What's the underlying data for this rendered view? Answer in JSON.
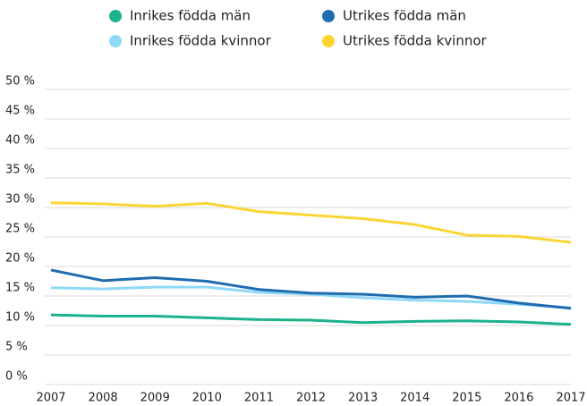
{
  "chart_data": {
    "type": "line",
    "x": [
      "2007",
      "2008",
      "2009",
      "2010",
      "2011",
      "2012",
      "2013",
      "2014",
      "2015",
      "2016",
      "2017"
    ],
    "series": [
      {
        "name": "Inrikes födda män",
        "color": "#1cb28b",
        "values": [
          11.8,
          11.6,
          11.6,
          11.3,
          11.0,
          10.9,
          10.5,
          10.7,
          10.8,
          10.6,
          10.2
        ]
      },
      {
        "name": "Inrikes födda kvinnor",
        "color": "#8fd8f7",
        "values": [
          16.4,
          16.2,
          16.5,
          16.5,
          15.6,
          15.3,
          14.7,
          14.3,
          14.1,
          13.6,
          13.0
        ]
      },
      {
        "name": "Utrikes födda män",
        "color": "#1f6cb0",
        "values": [
          19.4,
          17.6,
          18.1,
          17.5,
          16.1,
          15.5,
          15.3,
          14.8,
          15.0,
          13.8,
          12.9
        ]
      },
      {
        "name": "Utrikes födda kvinnor",
        "color": "#fcd535",
        "values": [
          30.8,
          30.6,
          30.2,
          30.7,
          29.3,
          28.7,
          28.1,
          27.1,
          25.3,
          25.1,
          24.1
        ]
      }
    ],
    "ylim": [
      0,
      50
    ],
    "yticks": [
      {
        "value": 0,
        "label": "0 %"
      },
      {
        "value": 5,
        "label": "5 %"
      },
      {
        "value": 10,
        "label": "10 %"
      },
      {
        "value": 15,
        "label": "15 %"
      },
      {
        "value": 20,
        "label": "20 %"
      },
      {
        "value": 25,
        "label": "25 %"
      },
      {
        "value": 30,
        "label": "30 %"
      },
      {
        "value": 35,
        "label": "35 %"
      },
      {
        "value": 40,
        "label": "40 %"
      },
      {
        "value": 45,
        "label": "45 %"
      },
      {
        "value": 50,
        "label": "50 %"
      }
    ],
    "grid": true,
    "legend": "top"
  }
}
